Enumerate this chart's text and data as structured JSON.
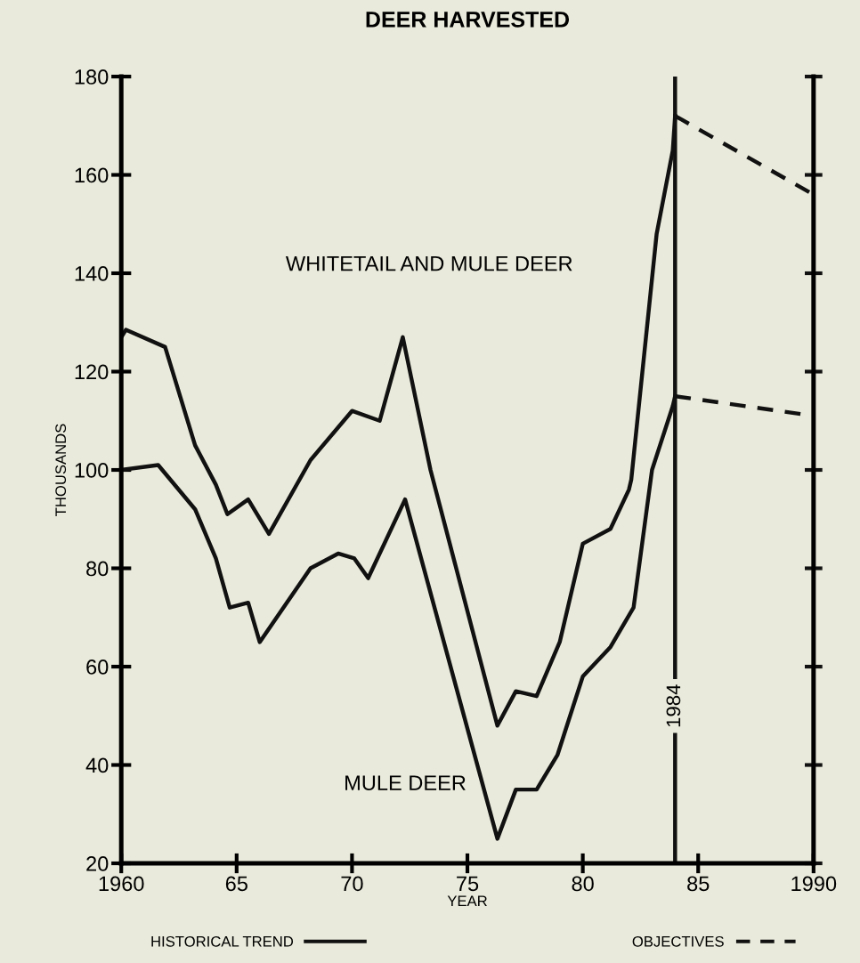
{
  "chart_data": {
    "type": "line",
    "title": "DEER HARVESTED",
    "xlabel": "YEAR",
    "ylabel": "THOUSANDS",
    "xlim": [
      1960,
      1990
    ],
    "ylim": [
      20,
      180
    ],
    "xticks": [
      1960,
      {
        "value": 1965,
        "label": "65"
      },
      {
        "value": 1970,
        "label": "70"
      },
      {
        "value": 1975,
        "label": "75"
      },
      {
        "value": 1980,
        "label": "80"
      },
      {
        "value": 1985,
        "label": "85"
      },
      1990
    ],
    "yticks": [
      20,
      40,
      60,
      80,
      100,
      120,
      140,
      160,
      180
    ],
    "series": [
      {
        "name": "HISTORICAL TREND",
        "color": "#111111",
        "line_style": "solid",
        "x": [
          1960,
          1960.2,
          1961.9,
          1963.2,
          1964.1,
          1964.6,
          1965.5,
          1966.4,
          1968.2,
          1970.0,
          1971.2,
          1972.2,
          1973.4,
          1976.3,
          1977.1,
          1978.0,
          1979.0,
          1980.0,
          1981.2,
          1982.0,
          1982.1,
          1983.2,
          1983.9,
          1984
        ],
        "values": [
          127,
          128.5,
          125,
          105,
          97,
          91,
          94,
          87,
          102,
          112,
          110,
          127,
          100,
          48,
          55,
          54,
          65,
          85,
          88,
          96,
          98,
          148,
          165,
          172
        ]
      },
      {
        "color": "#111111",
        "line_style": "solid",
        "x": [
          1960,
          1961.6,
          1963.2,
          1964.1,
          1964.7,
          1965.5,
          1966.0,
          1968.2,
          1969.4,
          1970.1,
          1970.7,
          1972.3,
          1976.3,
          1977.1,
          1978.0,
          1978.9,
          1980.0,
          1981.2,
          1982.2,
          1983.0,
          1983.9,
          1984
        ],
        "values": [
          100,
          101,
          92,
          82,
          72,
          73,
          65,
          80,
          83,
          82,
          78,
          94,
          25,
          35,
          35,
          42,
          58,
          64,
          72,
          100,
          113,
          115
        ]
      },
      {
        "name": "OBJECTIVES",
        "color": "#111111",
        "line_style": "dashed",
        "x": [
          1984,
          1990
        ],
        "values": [
          172,
          156
        ]
      },
      {
        "color": "#111111",
        "line_style": "dashed",
        "x": [
          1984,
          1990
        ],
        "values": [
          115,
          111
        ]
      }
    ],
    "ref_lines": [
      {
        "axis": "x",
        "value": 1984,
        "label": "1984",
        "color": "#111111",
        "line_style": "solid"
      }
    ],
    "annotations": [
      "WHITETAIL AND MULE DEER",
      "MULE DEER"
    ],
    "grid": false,
    "legend": "bottom",
    "marker": "none"
  }
}
